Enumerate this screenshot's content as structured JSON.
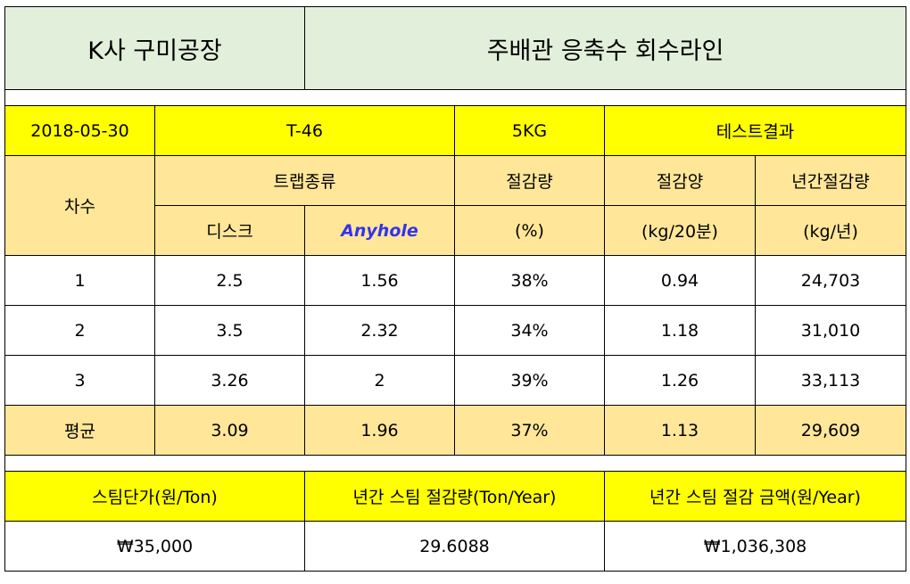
{
  "header": {
    "company": "K사 구미공장",
    "line": "주배관 응축수 회수라인"
  },
  "test_info": {
    "date": "2018-05-30",
    "model": "T-46",
    "weight": "5KG",
    "result": "테스트결과"
  },
  "columns": {
    "round": "차수",
    "trap_type": "트랩종류",
    "disc": "디스크",
    "anyhole": "Anyhole",
    "reduction_rate": "절감량",
    "reduction_rate_unit": "(%)",
    "reduction_amount": "절감양",
    "reduction_amount_unit": "(kg/20분)",
    "annual_reduction": "년간절감량",
    "annual_reduction_unit": "(kg/년)"
  },
  "rows": [
    {
      "round": "1",
      "disc": "2.5",
      "anyhole": "1.56",
      "rate": "38%",
      "amount": "0.94",
      "annual": "24,703"
    },
    {
      "round": "2",
      "disc": "3.5",
      "anyhole": "2.32",
      "rate": "34%",
      "amount": "1.18",
      "annual": "31,010"
    },
    {
      "round": "3",
      "disc": "3.26",
      "anyhole": "2",
      "rate": "39%",
      "amount": "1.26",
      "annual": "33,113"
    }
  ],
  "average": {
    "round": "평균",
    "disc": "3.09",
    "anyhole": "1.96",
    "rate": "37%",
    "amount": "1.13",
    "annual": "29,609"
  },
  "summary": {
    "unit_price_label": "스팀단가(원/Ton)",
    "annual_steam_label": "년간 스팀 절감량(Ton/Year)",
    "annual_amount_label": "년간 스팀 절감 금액(원/Year)",
    "unit_price": "₩35,000",
    "annual_steam": "29.6088",
    "annual_amount": "₩1,036,308"
  },
  "colors": {
    "header_green": "#e2efda",
    "highlight_yellow": "#ffff00",
    "tan": "#ffe699",
    "anyhole_blue": "#3333ee"
  }
}
